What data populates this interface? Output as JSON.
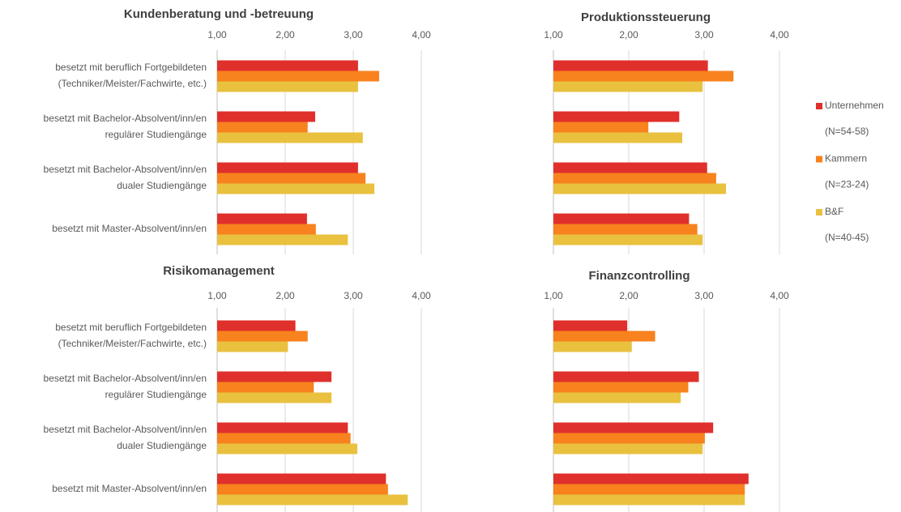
{
  "legend": [
    {
      "name": "Unternehmen",
      "sample": "(N=54-58)",
      "color": "#e0302b"
    },
    {
      "name": "Kammern",
      "sample": "(N=23-24)",
      "color": "#f7821e"
    },
    {
      "name": "B&F",
      "sample": "(N=40-45)",
      "color": "#e9c13f"
    }
  ],
  "chart_data": [
    {
      "type": "bar",
      "orientation": "horizontal",
      "title": "Kundenberatung und -betreuung",
      "categories": [
        [
          "besetzt mit beruflich Fortgebildeten",
          "(Techniker/Meister/Fachwirte, etc.)"
        ],
        [
          "besetzt mit Bachelor-Absolvent/inn/en",
          "regulärer Studiengänge"
        ],
        [
          "besetzt mit Bachelor-Absolvent/inn/en",
          "dualer Studiengänge"
        ],
        [
          "besetzt mit Master-Absolvent/inn/en"
        ]
      ],
      "series": [
        {
          "values": [
            3.07,
            2.44,
            3.07,
            2.32
          ]
        },
        {
          "values": [
            3.38,
            2.33,
            3.18,
            2.45
          ]
        },
        {
          "values": [
            3.07,
            3.14,
            3.31,
            2.92
          ]
        }
      ],
      "xlim": [
        1,
        4
      ],
      "xticks": [
        {
          "value": 1,
          "label": "1,00"
        },
        {
          "value": 2,
          "label": "2,00"
        },
        {
          "value": 3,
          "label": "3,00"
        },
        {
          "value": 4,
          "label": "4,00"
        }
      ],
      "grid": true
    },
    {
      "type": "bar",
      "orientation": "horizontal",
      "title": "Produktionssteuerung",
      "series": [
        {
          "values": [
            3.05,
            2.67,
            3.04,
            2.8
          ]
        },
        {
          "values": [
            3.39,
            2.26,
            3.16,
            2.91
          ]
        },
        {
          "values": [
            2.98,
            2.71,
            3.29,
            2.98
          ]
        }
      ],
      "xlim": [
        1,
        4
      ],
      "xticks": [
        {
          "value": 1,
          "label": "1,00"
        },
        {
          "value": 2,
          "label": "2,00"
        },
        {
          "value": 3,
          "label": "3,00"
        },
        {
          "value": 4,
          "label": "4,00"
        }
      ],
      "grid": true
    },
    {
      "type": "bar",
      "orientation": "horizontal",
      "title": "Risikomanagement",
      "categories": [
        [
          "besetzt mit beruflich Fortgebildeten",
          "(Techniker/Meister/Fachwirte, etc.)"
        ],
        [
          "besetzt mit Bachelor-Absolvent/inn/en",
          "regulärer Studiengänge"
        ],
        [
          "besetzt mit Bachelor-Absolvent/inn/en",
          "dualer Studiengänge"
        ],
        [
          "besetzt mit Master-Absolvent/inn/en"
        ]
      ],
      "series": [
        {
          "values": [
            2.15,
            2.68,
            2.92,
            3.48
          ]
        },
        {
          "values": [
            2.33,
            2.42,
            2.96,
            3.51
          ]
        },
        {
          "values": [
            2.04,
            2.68,
            3.06,
            3.8
          ]
        }
      ],
      "xlim": [
        1,
        4
      ],
      "xticks": [
        {
          "value": 1,
          "label": "1,00"
        },
        {
          "value": 2,
          "label": "2,00"
        },
        {
          "value": 3,
          "label": "3,00"
        },
        {
          "value": 4,
          "label": "4,00"
        }
      ],
      "grid": true
    },
    {
      "type": "bar",
      "orientation": "horizontal",
      "title": "Finanzcontrolling",
      "series": [
        {
          "values": [
            1.98,
            2.93,
            3.12,
            3.59
          ]
        },
        {
          "values": [
            2.35,
            2.79,
            3.01,
            3.54
          ]
        },
        {
          "values": [
            2.04,
            2.69,
            2.98,
            3.54
          ]
        }
      ],
      "xlim": [
        1,
        4
      ],
      "xticks": [
        {
          "value": 1,
          "label": "1,00"
        },
        {
          "value": 2,
          "label": "2,00"
        },
        {
          "value": 3,
          "label": "3,00"
        },
        {
          "value": 4,
          "label": "4,00"
        }
      ],
      "grid": true
    }
  ]
}
